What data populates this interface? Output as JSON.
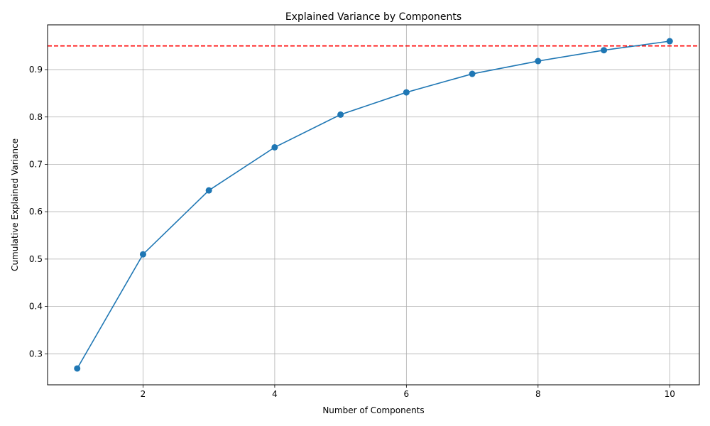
{
  "chart_data": {
    "type": "line",
    "title": "Explained Variance by Components",
    "xlabel": "Number of Components",
    "ylabel": "Cumulative Explained Variance",
    "x": [
      1,
      2,
      3,
      4,
      5,
      6,
      7,
      8,
      9,
      10
    ],
    "series": [
      {
        "values": [
          0.269,
          0.51,
          0.645,
          0.736,
          0.805,
          0.852,
          0.891,
          0.918,
          0.941,
          0.96
        ],
        "color": "#1f77b4",
        "marker": "circle"
      }
    ],
    "threshold": {
      "value": 0.95,
      "color": "#ff0000",
      "style": "dashed"
    },
    "xlim": [
      0.55,
      10.45
    ],
    "ylim": [
      0.2345,
      0.9945
    ],
    "xticks": [
      "2",
      "4",
      "6",
      "8",
      "10"
    ],
    "yticks": [
      "0.3",
      "0.4",
      "0.5",
      "0.6",
      "0.7",
      "0.8",
      "0.9"
    ],
    "grid": true,
    "legend": "none"
  }
}
